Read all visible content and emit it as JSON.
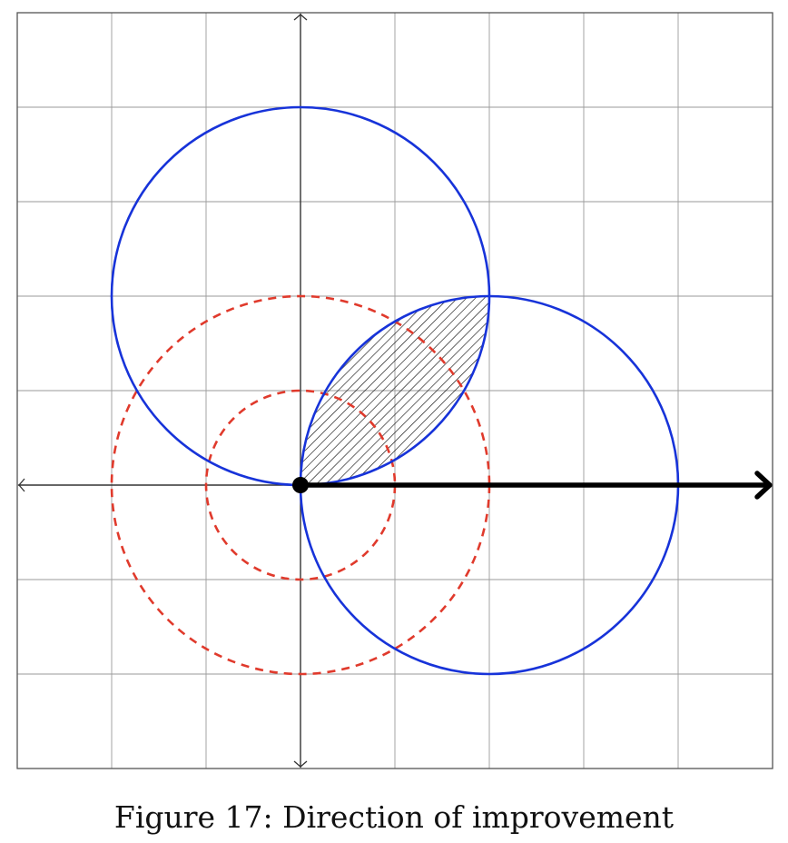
{
  "caption": "Figure 17: Direction of improvement",
  "diagram": {
    "grid": {
      "x_range": [
        -3,
        5
      ],
      "y_range": [
        -3,
        5
      ],
      "step": 1
    },
    "axes": {
      "x_arrows": "both",
      "y_arrows": "both"
    },
    "blue_circles": [
      {
        "center": [
          0,
          2
        ],
        "radius": 2
      },
      {
        "center": [
          2,
          0
        ],
        "radius": 2
      }
    ],
    "red_dashed_circles": [
      {
        "center": [
          0,
          0
        ],
        "radius": 1
      },
      {
        "center": [
          0,
          0
        ],
        "radius": 2
      }
    ],
    "hatched_region": "intersection of the two blue circles",
    "point": [
      0,
      0
    ],
    "direction_arrow": {
      "from": [
        0,
        0
      ],
      "to": [
        5,
        0
      ]
    },
    "colors": {
      "blue": "#1733d9",
      "red": "#e03a2c",
      "grid": "#9a9a9a",
      "axis": "#333333",
      "frame": "#555555",
      "arrow": "#000000"
    }
  }
}
